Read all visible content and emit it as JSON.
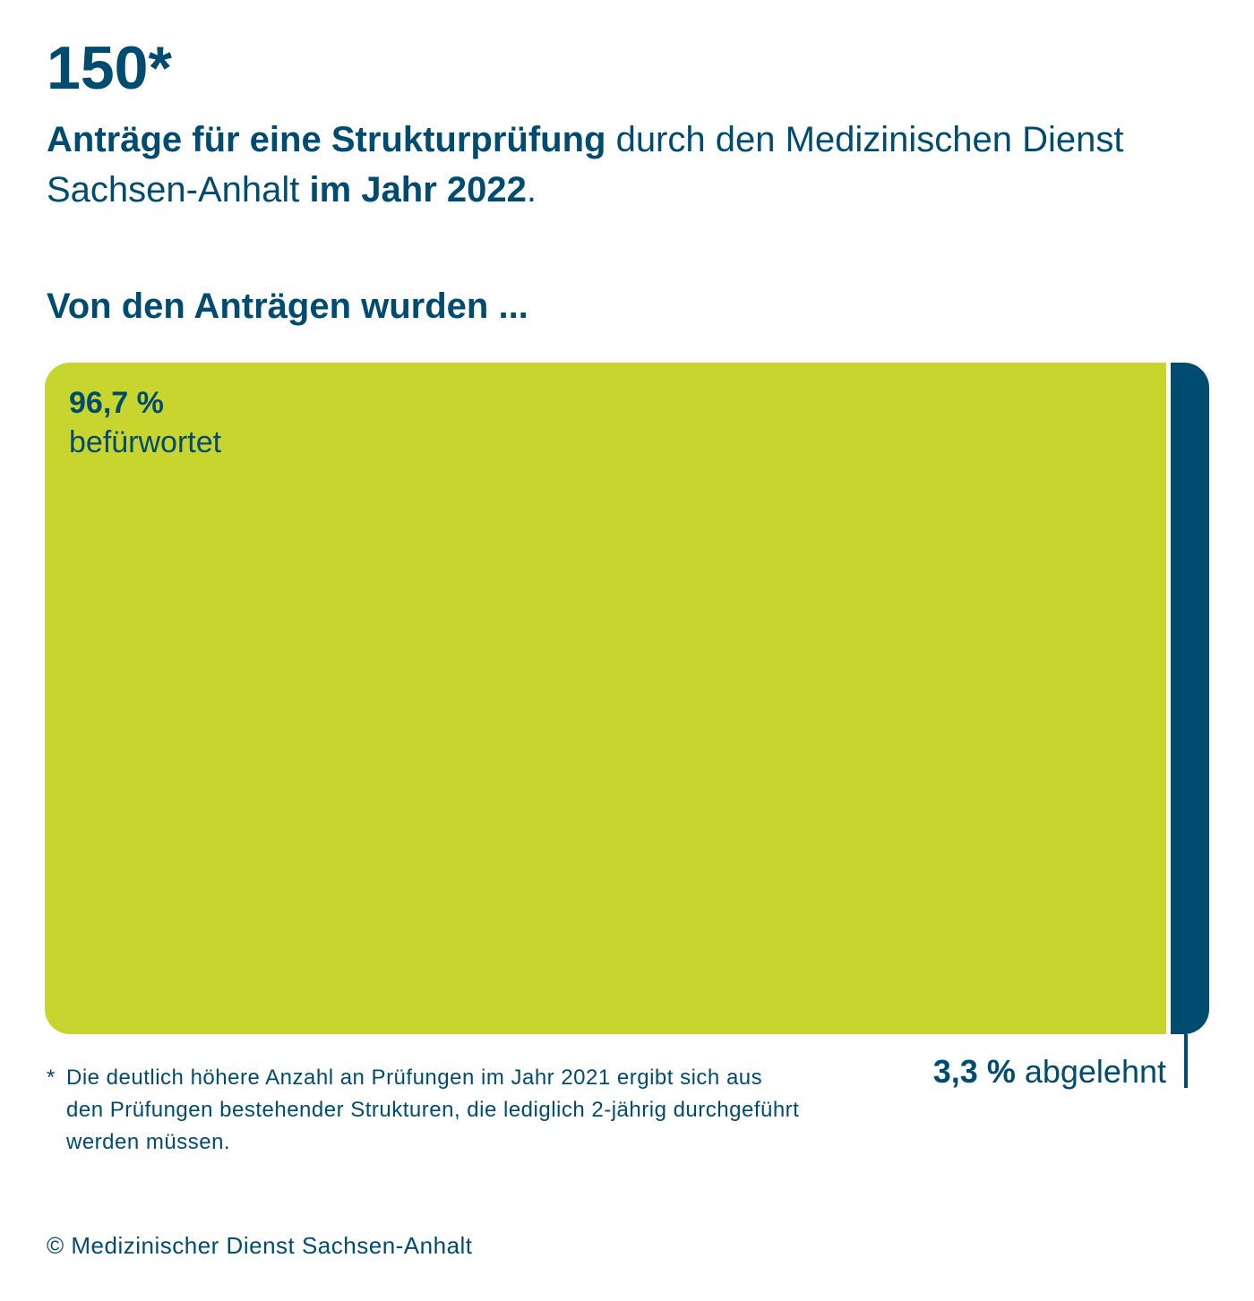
{
  "header": {
    "number": "150*",
    "subtitle_bold1": "Anträge für eine Strukturprüfung",
    "subtitle_normal1": " durch den Medizinischen Dienst Sachsen-Anhalt ",
    "subtitle_bold2": "im Jahr 2022",
    "subtitle_end": "."
  },
  "section_heading": "Von den Anträgen wurden ...",
  "chart_data": {
    "type": "bar",
    "orientation": "horizontal-stacked",
    "title": "Von den Anträgen wurden ...",
    "categories": [
      "befürwortet",
      "abgelehnt"
    ],
    "values": [
      96.7,
      3.3
    ],
    "unit": "%",
    "labels": [
      {
        "value": "96,7 %",
        "text": "befürwortet"
      },
      {
        "value": "3,3 %",
        "text": "abgelehnt"
      }
    ],
    "colors": [
      "#c8d52e",
      "#004b70"
    ]
  },
  "footnote": {
    "marker": "*",
    "text": "Die deutlich höhere Anzahl an Prüfungen im Jahr 2021 ergibt sich aus den Prüfungen bestehender Strukturen, die lediglich 2-jährig durchgeführt werden müssen."
  },
  "copyright": "© Medizinischer Dienst Sachsen-Anhalt"
}
